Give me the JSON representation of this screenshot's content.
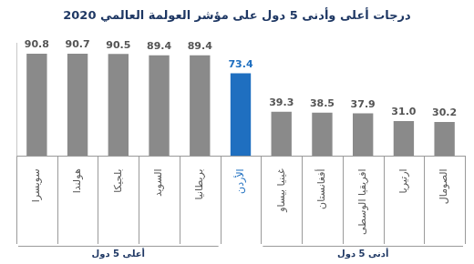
{
  "chart_data": {
    "type": "bar",
    "title": "درجات أعلى وأدنى 5 دول على مؤشر العولمة العالمي 2020",
    "categories": [
      "سويسرا",
      "هولندا",
      "بلجيكا",
      "السويد",
      "بريطانيا",
      "الأردن",
      "غينيا بيساو",
      "أفغانستان",
      "افريقيا الوسطى",
      "ارتيريا",
      "الصومال"
    ],
    "values": [
      90.8,
      90.7,
      90.5,
      89.4,
      89.4,
      73.4,
      39.3,
      38.5,
      37.9,
      31.0,
      30.2
    ],
    "value_labels": [
      "90.8",
      "90.7",
      "90.5",
      "89.4",
      "89.4",
      "73.4",
      "39.3",
      "38.5",
      "37.9",
      "31.0",
      "30.2"
    ],
    "colors": [
      "#8a8a8a",
      "#8a8a8a",
      "#8a8a8a",
      "#8a8a8a",
      "#8a8a8a",
      "#1f6fc0",
      "#8a8a8a",
      "#8a8a8a",
      "#8a8a8a",
      "#8a8a8a",
      "#8a8a8a"
    ],
    "ylim": [
      0,
      100
    ],
    "grid": false,
    "tick_labels": "x",
    "data_labels": true,
    "groups": [
      {
        "name": "أعلى 5 دول",
        "categories": [
          "سويسرا",
          "هولندا",
          "بلجيكا",
          "السويد",
          "بريطانيا"
        ]
      },
      {
        "name": "أدنى 5 دول",
        "categories": [
          "غينيا بيساو",
          "أفغانستان",
          "افريقيا الوسطى",
          "ارتيريا",
          "الصومال"
        ]
      }
    ]
  }
}
